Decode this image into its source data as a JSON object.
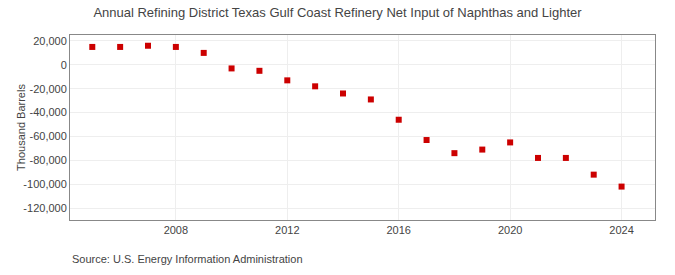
{
  "chart_data": {
    "type": "scatter",
    "title": "Annual Refining District Texas Gulf Coast Refinery Net Input of Naphthas and Lighter",
    "ylabel": "Thousand Barrels",
    "annotations": [
      "Source: U.S. Energy Information Administration"
    ],
    "x": [
      2005,
      2006,
      2007,
      2008,
      2009,
      2010,
      2011,
      2012,
      2013,
      2014,
      2015,
      2016,
      2017,
      2018,
      2019,
      2020,
      2021,
      2022,
      2023,
      2024
    ],
    "values": [
      15000,
      15000,
      16000,
      15000,
      10000,
      -3000,
      -5000,
      -13000,
      -18000,
      -24000,
      -29000,
      -46000,
      -63000,
      -74000,
      -71000,
      -65000,
      -78000,
      -78000,
      -92000,
      -102000
    ],
    "color": "#cc0000",
    "marker": "square",
    "xlim": [
      2004.2,
      2025.2
    ],
    "ylim": [
      -130000,
      25000
    ],
    "xticks": [
      2008,
      2012,
      2016,
      2020,
      2024
    ],
    "yticks": [
      {
        "value": 20000,
        "label": "20,000"
      },
      0,
      {
        "value": -20000,
        "label": "-20,000"
      },
      {
        "value": -40000,
        "label": "-40,000"
      },
      {
        "value": -60000,
        "label": "-60,000"
      },
      {
        "value": -80000,
        "label": "-80,000"
      },
      {
        "value": -100000,
        "label": "-100,000"
      },
      {
        "value": -120000,
        "label": "-120,000"
      }
    ],
    "grid": true
  }
}
